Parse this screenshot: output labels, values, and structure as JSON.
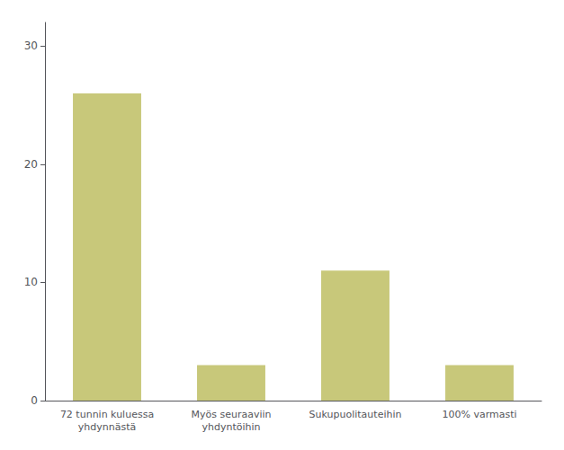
{
  "chart_data": {
    "type": "bar",
    "categories": [
      "72 tunnin kuluessa\nyhdynnästä",
      "Myös seuraaviin\nyhdyntöihin",
      "Sukupuolitauteihin",
      "100% varmasti"
    ],
    "values": [
      26,
      3,
      11,
      3
    ],
    "color": "#c8c87a",
    "ylim": [
      0,
      32
    ],
    "yticks": [
      0,
      10,
      20,
      30
    ],
    "grid": false
  }
}
